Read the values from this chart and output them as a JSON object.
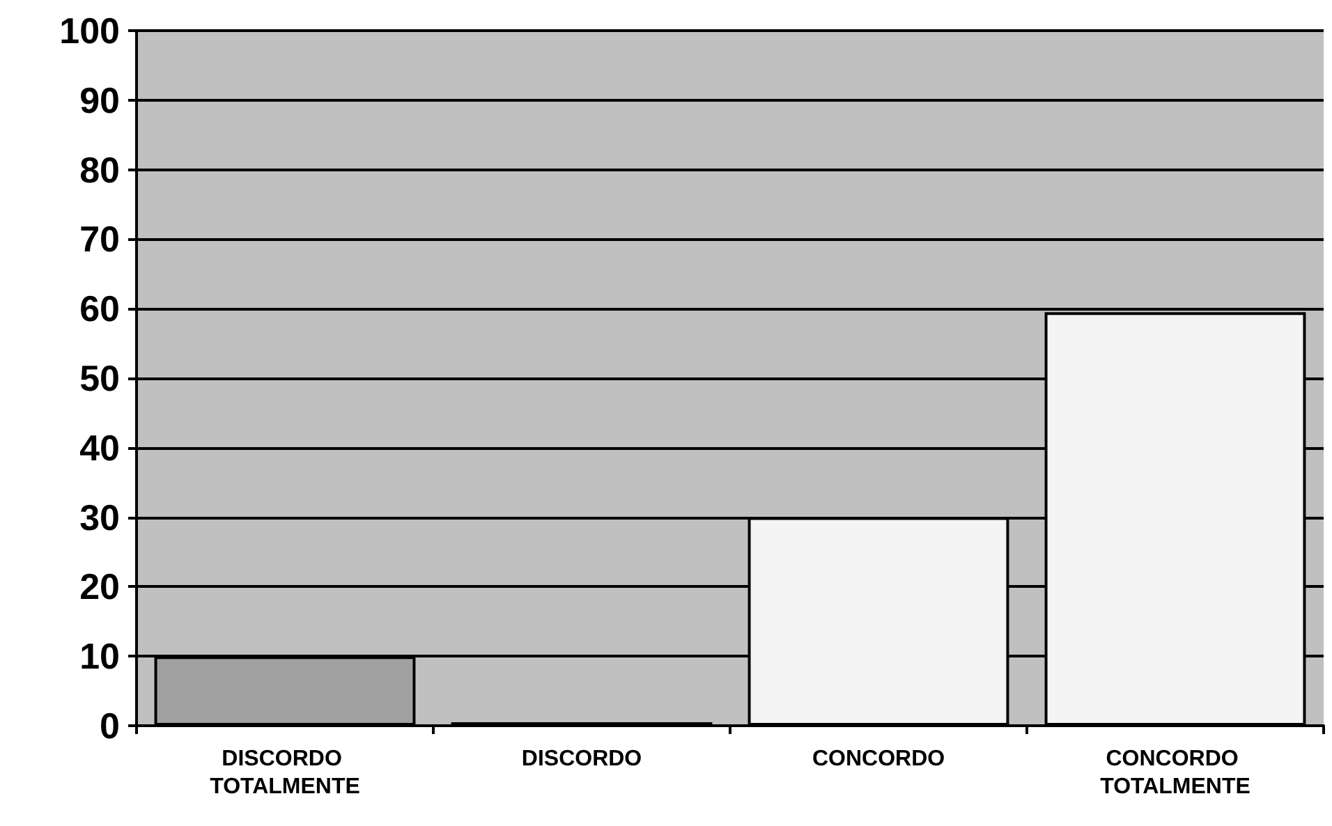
{
  "chart_data": {
    "type": "bar",
    "categories": [
      "DISCORDO TOTALMENTE",
      "DISCORDO",
      "CONCORDO",
      "CONCORDO TOTALMENTE"
    ],
    "values": [
      10,
      0.5,
      30,
      59.5
    ],
    "colors": [
      "#a0a0a0",
      "#a0a0a0",
      "#f4f4f4",
      "#f4f4f4"
    ],
    "ylim": [
      0,
      100
    ],
    "yticks": [
      0,
      10,
      20,
      30,
      40,
      50,
      60,
      70,
      80,
      90,
      100
    ],
    "grid": "y"
  }
}
